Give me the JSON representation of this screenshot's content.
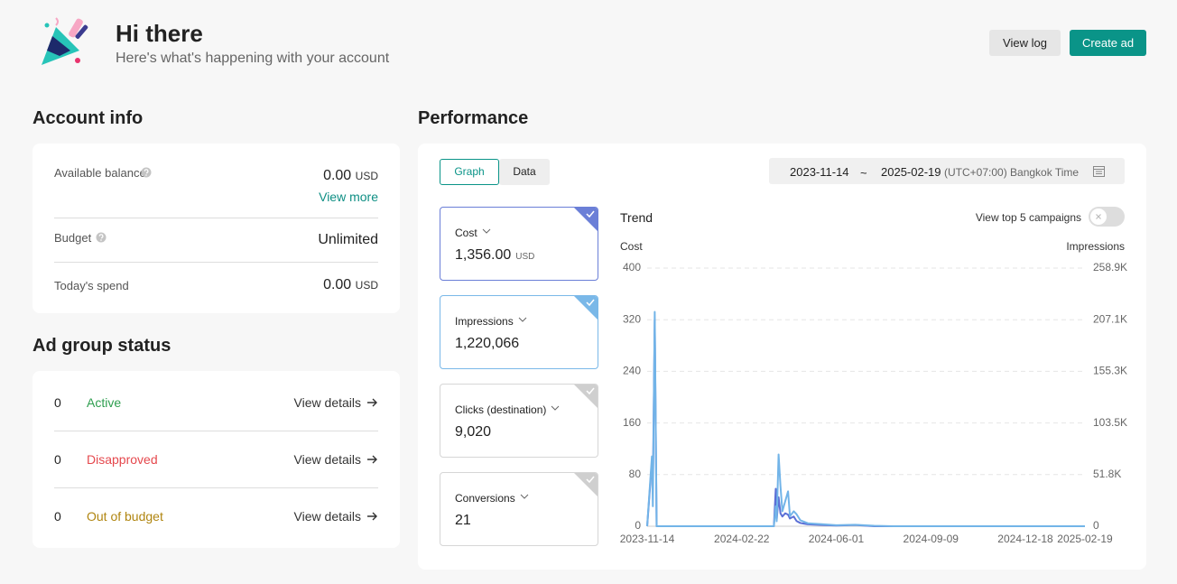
{
  "header": {
    "title": "Hi there",
    "subtitle": "Here's what's happening with your account",
    "buttons": [
      "View log",
      "Create ad"
    ]
  },
  "account_info": {
    "title": "Account info",
    "rows": [
      {
        "label": "Available balance",
        "value": "0.00",
        "unit": "USD",
        "link": "View more"
      },
      {
        "label": "Budget",
        "value": "Unlimited"
      },
      {
        "label": "Today's spend",
        "value": "0.00",
        "unit": "USD"
      }
    ]
  },
  "ad_group_status": {
    "title": "Ad group status",
    "rows": [
      {
        "count": 0,
        "status": "Active",
        "link": "View details"
      },
      {
        "count": 0,
        "status": "Disapproved",
        "link": "View details"
      },
      {
        "count": 0,
        "status": "Out of budget",
        "link": "View details"
      }
    ]
  },
  "performance": {
    "title": "Performance",
    "tabs": [
      "Graph",
      "Data"
    ],
    "date_start": "2023-11-14",
    "date_separator": "~",
    "date_end": "2025-02-19",
    "timezone": "(UTC+07:00) Bangkok Time",
    "metrics": [
      {
        "name": "Cost",
        "value": "1,356.00",
        "unit": "USD"
      },
      {
        "name": "Impressions",
        "value": "1,220,066"
      },
      {
        "name": "Clicks (destination)",
        "value": "9,020"
      },
      {
        "name": "Conversions",
        "value": "21"
      }
    ],
    "trend_title": "Trend",
    "toggle_label": "View top 5 campaigns"
  },
  "chart_data": {
    "type": "line",
    "x": [
      "2023-11-14",
      "2023-11-19",
      "2023-11-20",
      "2023-11-22",
      "2023-11-24",
      "2024-03-27",
      "2024-03-29",
      "2024-03-30",
      "2024-04-01",
      "2024-04-03",
      "2024-04-05",
      "2024-04-08",
      "2024-04-11",
      "2024-04-13",
      "2024-04-17",
      "2024-04-20",
      "2024-04-24",
      "2024-05-02",
      "2024-05-17",
      "2024-06-01",
      "2024-06-21",
      "2024-07-11",
      "2024-07-31",
      "2025-02-19"
    ],
    "series": [
      {
        "name": "Cost",
        "color": "#5b6fd6",
        "values": [
          0,
          100,
          60,
          320,
          0,
          0,
          58,
          10,
          45,
          20,
          15,
          20,
          18,
          12,
          15,
          8,
          5,
          3,
          2,
          1,
          2,
          0,
          0,
          0
        ]
      },
      {
        "name": "Impressions",
        "color": "#72b4e8",
        "axis": "y2",
        "values": [
          0,
          70000,
          20000,
          215000,
          0,
          0,
          20000,
          5000,
          72000,
          40000,
          15000,
          25000,
          35000,
          10000,
          15000,
          12000,
          6000,
          3000,
          2000,
          1000,
          1500,
          500,
          0,
          0
        ]
      }
    ],
    "xlim": [
      "2023-11-14",
      "2025-02-19"
    ],
    "xticks": [
      "2023-11-14",
      "2024-02-22",
      "2024-06-01",
      "2024-09-09",
      "2024-12-18",
      "2025-02-19"
    ],
    "ylim": [
      0,
      400
    ],
    "yticks": [
      0,
      80,
      160,
      240,
      320,
      400
    ],
    "y2lim": [
      0,
      258900
    ],
    "y2ticks": [
      0,
      {
        "value": 51800,
        "label": "51.8K"
      },
      {
        "value": 103500,
        "label": "103.5K"
      },
      {
        "value": 155300,
        "label": "155.3K"
      },
      {
        "value": 207100,
        "label": "207.1K"
      },
      {
        "value": 258900,
        "label": "258.9K"
      }
    ],
    "grid": true
  }
}
